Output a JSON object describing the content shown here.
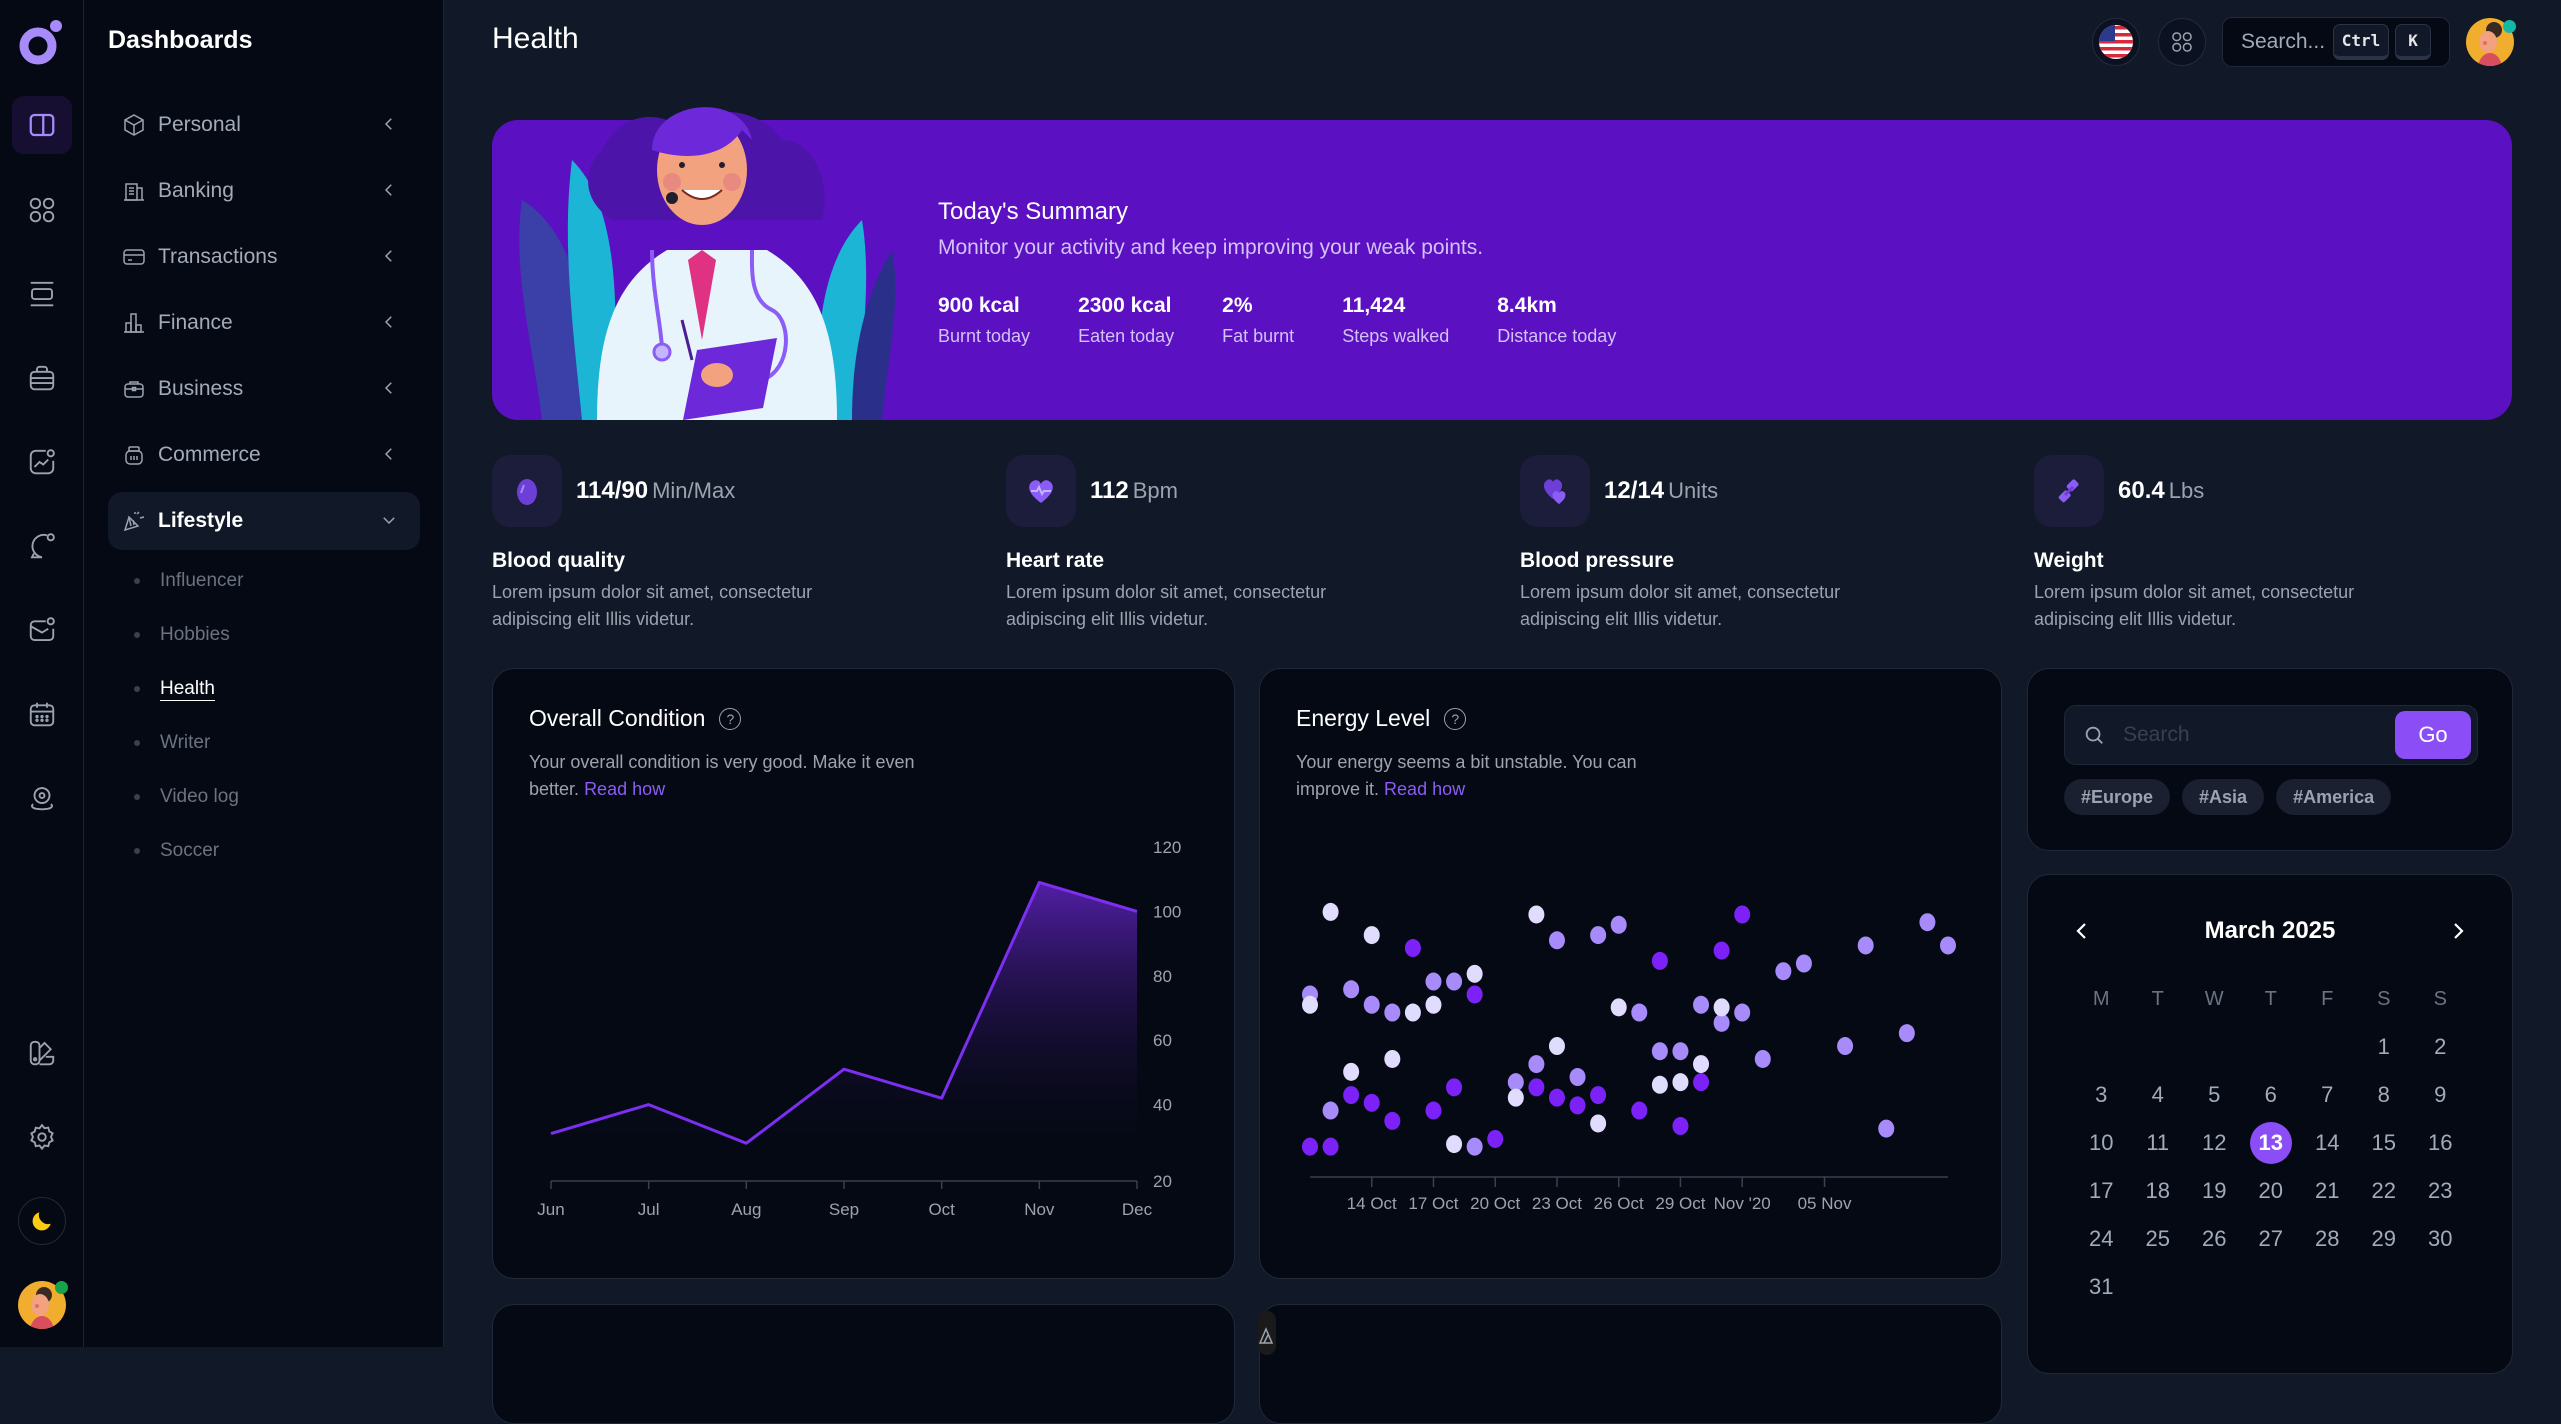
{
  "rail": {
    "logo": "brand-logo",
    "items": [
      {
        "icon": "layout-sidebar-icon",
        "active": true
      },
      {
        "icon": "apps-grid-icon"
      },
      {
        "icon": "list-icon"
      },
      {
        "icon": "briefcase-icon"
      },
      {
        "icon": "chart-icon"
      },
      {
        "icon": "chat-icon"
      },
      {
        "icon": "mail-icon"
      },
      {
        "icon": "calendar-icon"
      },
      {
        "icon": "map-pin-icon"
      }
    ],
    "bottom": [
      {
        "icon": "palette-icon"
      },
      {
        "icon": "gear-icon"
      },
      {
        "icon": "moon-icon"
      }
    ],
    "accent": "#a78bfa",
    "moon_color": "#facc15"
  },
  "sidebar": {
    "title": "Dashboards",
    "items": [
      {
        "label": "Personal",
        "icon": "box-icon"
      },
      {
        "label": "Banking",
        "icon": "building-icon"
      },
      {
        "label": "Transactions",
        "icon": "credit-card-icon"
      },
      {
        "label": "Finance",
        "icon": "bar-chart-icon"
      },
      {
        "label": "Business",
        "icon": "briefcase-icon"
      },
      {
        "label": "Commerce",
        "icon": "basket-icon"
      },
      {
        "label": "Lifestyle",
        "icon": "confetti-icon",
        "open": true
      }
    ],
    "sub_items": [
      {
        "label": "Influencer"
      },
      {
        "label": "Hobbies"
      },
      {
        "label": "Health",
        "active": true
      },
      {
        "label": "Writer"
      },
      {
        "label": "Video log"
      },
      {
        "label": "Soccer"
      }
    ]
  },
  "header": {
    "title": "Health",
    "search_placeholder": "Search...",
    "kbd_ctrl": "Ctrl",
    "kbd_k": "K",
    "language_icon": "us-flag-icon",
    "apps_icon": "apps-grid-icon"
  },
  "banner": {
    "title": "Today's Summary",
    "subtitle": "Monitor your activity and keep improving your weak points.",
    "stats": [
      {
        "value": "900 kcal",
        "label": "Burnt today"
      },
      {
        "value": "2300 kcal",
        "label": "Eaten today"
      },
      {
        "value": "2%",
        "label": "Fat burnt"
      },
      {
        "value": "11,424",
        "label": "Steps walked"
      },
      {
        "value": "8.4km",
        "label": "Distance today"
      }
    ],
    "bg_color": "#5b11c1"
  },
  "stats": [
    {
      "value": "114/90",
      "unit": "Min/Max",
      "name": "Blood quality",
      "desc": "Lorem ipsum dolor sit amet, consectetur adipiscing elit Illis videtur.",
      "icon": "blood-drop-icon"
    },
    {
      "value": "112",
      "unit": "Bpm",
      "name": "Heart rate",
      "desc": "Lorem ipsum dolor sit amet, consectetur adipiscing elit Illis videtur.",
      "icon": "heart-pulse-icon"
    },
    {
      "value": "12/14",
      "unit": "Units",
      "name": "Blood pressure",
      "desc": "Lorem ipsum dolor sit amet, consectetur adipiscing elit Illis videtur.",
      "icon": "hearts-icon"
    },
    {
      "value": "60.4",
      "unit": "Lbs",
      "name": "Weight",
      "desc": "Lorem ipsum dolor sit amet, consectetur adipiscing elit Illis videtur.",
      "icon": "dumbbell-icon"
    }
  ],
  "overall": {
    "title": "Overall Condition",
    "desc": "Your overall condition is very good. Make it even better.",
    "link": "Read how"
  },
  "energy": {
    "title": "Energy Level",
    "desc": "Your energy seems a bit unstable. You can improve it.",
    "link": "Read how"
  },
  "search_card": {
    "placeholder": "Search",
    "go_label": "Go",
    "tags": [
      "#Europe",
      "#Asia",
      "#America"
    ]
  },
  "calendar": {
    "month_label": "March 2025",
    "weekdays": [
      "M",
      "T",
      "W",
      "T",
      "F",
      "S",
      "S"
    ],
    "first_weekday_offset": 5,
    "days": 31,
    "selected": 13
  },
  "chart_data": [
    {
      "type": "area",
      "title": "Overall Condition",
      "categories": [
        "Jun",
        "Jul",
        "Aug",
        "Sep",
        "Oct",
        "Nov",
        "Dec"
      ],
      "values": [
        31,
        40,
        28,
        51,
        42,
        109,
        100
      ],
      "ylim": [
        20,
        120
      ],
      "yticks": [
        20,
        40,
        60,
        80,
        100,
        120
      ],
      "y_axis_position": "right",
      "grid": false,
      "color": "#7c2ff0"
    },
    {
      "type": "scatter",
      "title": "Energy Level",
      "xticks": [
        "14 Oct",
        "17 Oct",
        "20 Oct",
        "23 Oct",
        "26 Oct",
        "29 Oct",
        "Nov '20",
        "05 Nov"
      ],
      "xrange_days": [
        "11 Oct",
        "09 Nov"
      ],
      "ylim": [
        0,
        100
      ],
      "grid": false,
      "series": [
        {
          "name": "series-1",
          "color": "#7c22f8",
          "points": [
            [
              0,
              4
            ],
            [
              1,
              4
            ],
            [
              2.0,
              24
            ],
            [
              3.0,
              21
            ],
            [
              4.0,
              14
            ],
            [
              5.0,
              81
            ],
            [
              6.0,
              18
            ],
            [
              7.0,
              27
            ],
            [
              8.0,
              63
            ],
            [
              9.0,
              7
            ],
            [
              11.0,
              27
            ],
            [
              12.0,
              23
            ],
            [
              13.0,
              20
            ],
            [
              14.0,
              24
            ],
            [
              16.0,
              18
            ],
            [
              17.0,
              76
            ],
            [
              18.0,
              12
            ],
            [
              19.0,
              29
            ],
            [
              20.0,
              80
            ],
            [
              21.0,
              94
            ]
          ]
        },
        {
          "name": "series-2",
          "color": "#a78bfa",
          "points": [
            [
              0,
              63
            ],
            [
              1,
              18
            ],
            [
              2.0,
              65
            ],
            [
              3.0,
              59
            ],
            [
              4.0,
              56
            ],
            [
              6.0,
              68
            ],
            [
              7.0,
              68
            ],
            [
              8.0,
              4
            ],
            [
              10.0,
              29
            ],
            [
              11.0,
              36
            ],
            [
              12.0,
              84
            ],
            [
              13.0,
              31
            ],
            [
              14.0,
              86
            ],
            [
              15.0,
              90
            ],
            [
              16.0,
              56
            ],
            [
              17.0,
              41
            ],
            [
              18.0,
              41
            ],
            [
              19.0,
              59
            ],
            [
              20.0,
              52
            ],
            [
              21.0,
              56
            ],
            [
              22.0,
              38
            ],
            [
              23.0,
              72
            ],
            [
              24.0,
              75
            ],
            [
              26.0,
              43
            ],
            [
              27.0,
              82
            ],
            [
              28.0,
              11
            ],
            [
              29.0,
              48
            ],
            [
              30.0,
              91
            ],
            [
              31.0,
              82
            ]
          ]
        },
        {
          "name": "series-3",
          "color": "#e0dcfd",
          "points": [
            [
              0,
              59
            ],
            [
              1,
              95
            ],
            [
              2.0,
              33
            ],
            [
              3.0,
              86
            ],
            [
              4.0,
              38
            ],
            [
              5.0,
              56
            ],
            [
              6.0,
              59
            ],
            [
              7.0,
              5
            ],
            [
              8.0,
              71
            ],
            [
              10.0,
              23
            ],
            [
              11.0,
              94
            ],
            [
              12.0,
              43
            ],
            [
              14.0,
              13
            ],
            [
              15.0,
              58
            ],
            [
              17.0,
              28
            ],
            [
              18.0,
              29
            ],
            [
              19.0,
              36
            ],
            [
              20.0,
              58
            ]
          ]
        }
      ]
    }
  ]
}
